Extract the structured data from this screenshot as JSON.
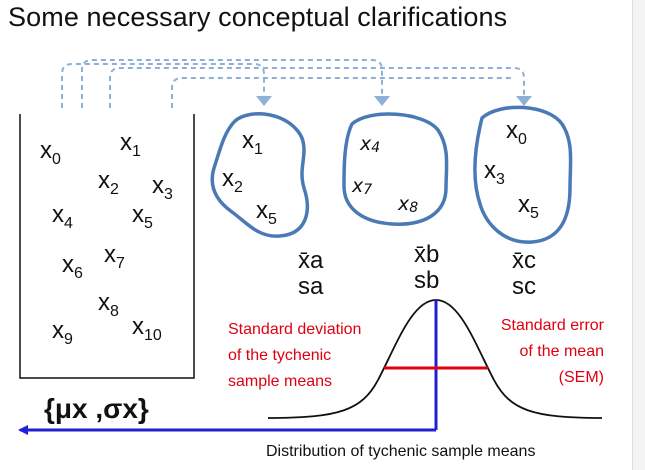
{
  "title": "Some necessary conceptual clarifications",
  "population": {
    "elements": [
      {
        "base": "x",
        "sub": "0"
      },
      {
        "base": "x",
        "sub": "1"
      },
      {
        "base": "x",
        "sub": "2"
      },
      {
        "base": "x",
        "sub": "3"
      },
      {
        "base": "x",
        "sub": "4"
      },
      {
        "base": "x",
        "sub": "5"
      },
      {
        "base": "x",
        "sub": "6"
      },
      {
        "base": "x",
        "sub": "7"
      },
      {
        "base": "x",
        "sub": "8"
      },
      {
        "base": "x",
        "sub": "9"
      },
      {
        "base": "x",
        "sub": "10"
      }
    ],
    "parameters": "{μx ,σx}"
  },
  "samples": [
    {
      "elements": [
        {
          "base": "x",
          "sub": "1"
        },
        {
          "base": "x",
          "sub": "2"
        },
        {
          "base": "x",
          "sub": "5"
        }
      ],
      "mean": "x̄a",
      "sd": "sa"
    },
    {
      "elements": [
        {
          "base": "x",
          "sub": "4"
        },
        {
          "base": "x",
          "sub": "7"
        },
        {
          "base": "x",
          "sub": "8"
        }
      ],
      "mean": "x̄b",
      "sd": "sb"
    },
    {
      "elements": [
        {
          "base": "x",
          "sub": "0"
        },
        {
          "base": "x",
          "sub": "3"
        },
        {
          "base": "x",
          "sub": "5"
        }
      ],
      "mean": "x̄c",
      "sd": "sc"
    }
  ],
  "annotations": {
    "sd_sample_means": [
      "Standard deviation",
      "of the tychenic",
      "sample means"
    ],
    "sem": [
      "Standard error",
      "of the mean",
      "(SEM)"
    ],
    "distribution": "Distribution of tychenic sample means"
  },
  "colors": {
    "outline": "#4a7ab5",
    "dashed": "#8fb0d6",
    "curve": "#111111",
    "red": "#e0000f",
    "blue": "#1f1fd6"
  }
}
